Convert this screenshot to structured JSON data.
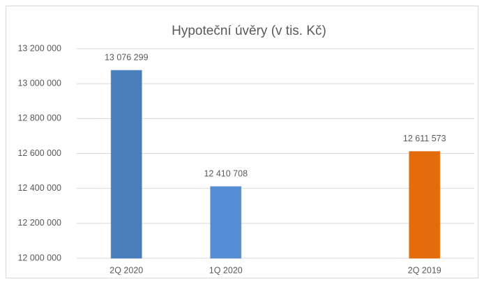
{
  "chart_data": {
    "type": "bar",
    "title": "Hypoteční úvěry (v tis. Kč)",
    "categories": [
      "2Q 2020",
      "1Q 2020",
      null,
      "2Q 2019"
    ],
    "values": [
      13076299,
      12410708,
      null,
      12611573
    ],
    "value_labels": [
      "13 076 299",
      "12 410 708",
      null,
      "12 611 573"
    ],
    "colors": [
      "#4a7ebb",
      "#558ed5",
      null,
      "#e46c0a"
    ],
    "ylim": [
      12000000,
      13200000
    ],
    "yticks": [
      {
        "value": 12000000,
        "label": "12 000 000"
      },
      {
        "value": 12200000,
        "label": "12 200 000"
      },
      {
        "value": 12400000,
        "label": "12 400 000"
      },
      {
        "value": 12600000,
        "label": "12 600 000"
      },
      {
        "value": 12800000,
        "label": "12 800 000"
      },
      {
        "value": 13000000,
        "label": "13 000 000"
      },
      {
        "value": 13200000,
        "label": "13 200 000"
      }
    ],
    "grid": true
  }
}
